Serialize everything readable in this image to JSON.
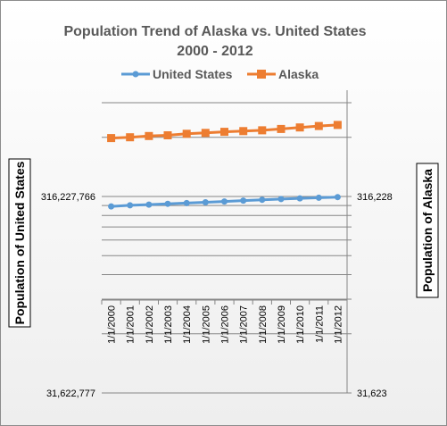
{
  "chart_data": {
    "type": "line",
    "title": [
      "Population Trend of Alaska vs. United States",
      "2000 - 2012"
    ],
    "categories": [
      "1/1/2000",
      "1/1/2001",
      "1/1/2002",
      "1/1/2003",
      "1/1/2004",
      "1/1/2005",
      "1/1/2006",
      "1/1/2007",
      "1/1/2008",
      "1/1/2009",
      "1/1/2010",
      "1/1/2011",
      "1/1/2012"
    ],
    "legend_position": "top",
    "grid": true,
    "left_axis": {
      "label": "Population of United States",
      "scale": "log",
      "range": [
        31622777,
        316227766
      ],
      "tick_labels": [
        "316,227,766",
        "31,622,777"
      ]
    },
    "right_axis": {
      "label": "Population of Alaska",
      "scale": "log",
      "range": [
        31623,
        316228
      ],
      "tick_labels": [
        "316,228",
        "31,623"
      ]
    },
    "series": [
      {
        "name": "United States",
        "axis": "left",
        "color": "#5b9bd5",
        "marker": "circle",
        "values": [
          281400000,
          284970000,
          287630000,
          290110000,
          292810000,
          295520000,
          298380000,
          301230000,
          304090000,
          306770000,
          309330000,
          311590000,
          313910000
        ]
      },
      {
        "name": "Alaska",
        "axis": "right",
        "color": "#ed7d31",
        "marker": "square",
        "values": [
          627000,
          633000,
          642000,
          648000,
          659000,
          666000,
          675000,
          680000,
          687000,
          698000,
          710000,
          722000,
          731000
        ]
      }
    ]
  }
}
